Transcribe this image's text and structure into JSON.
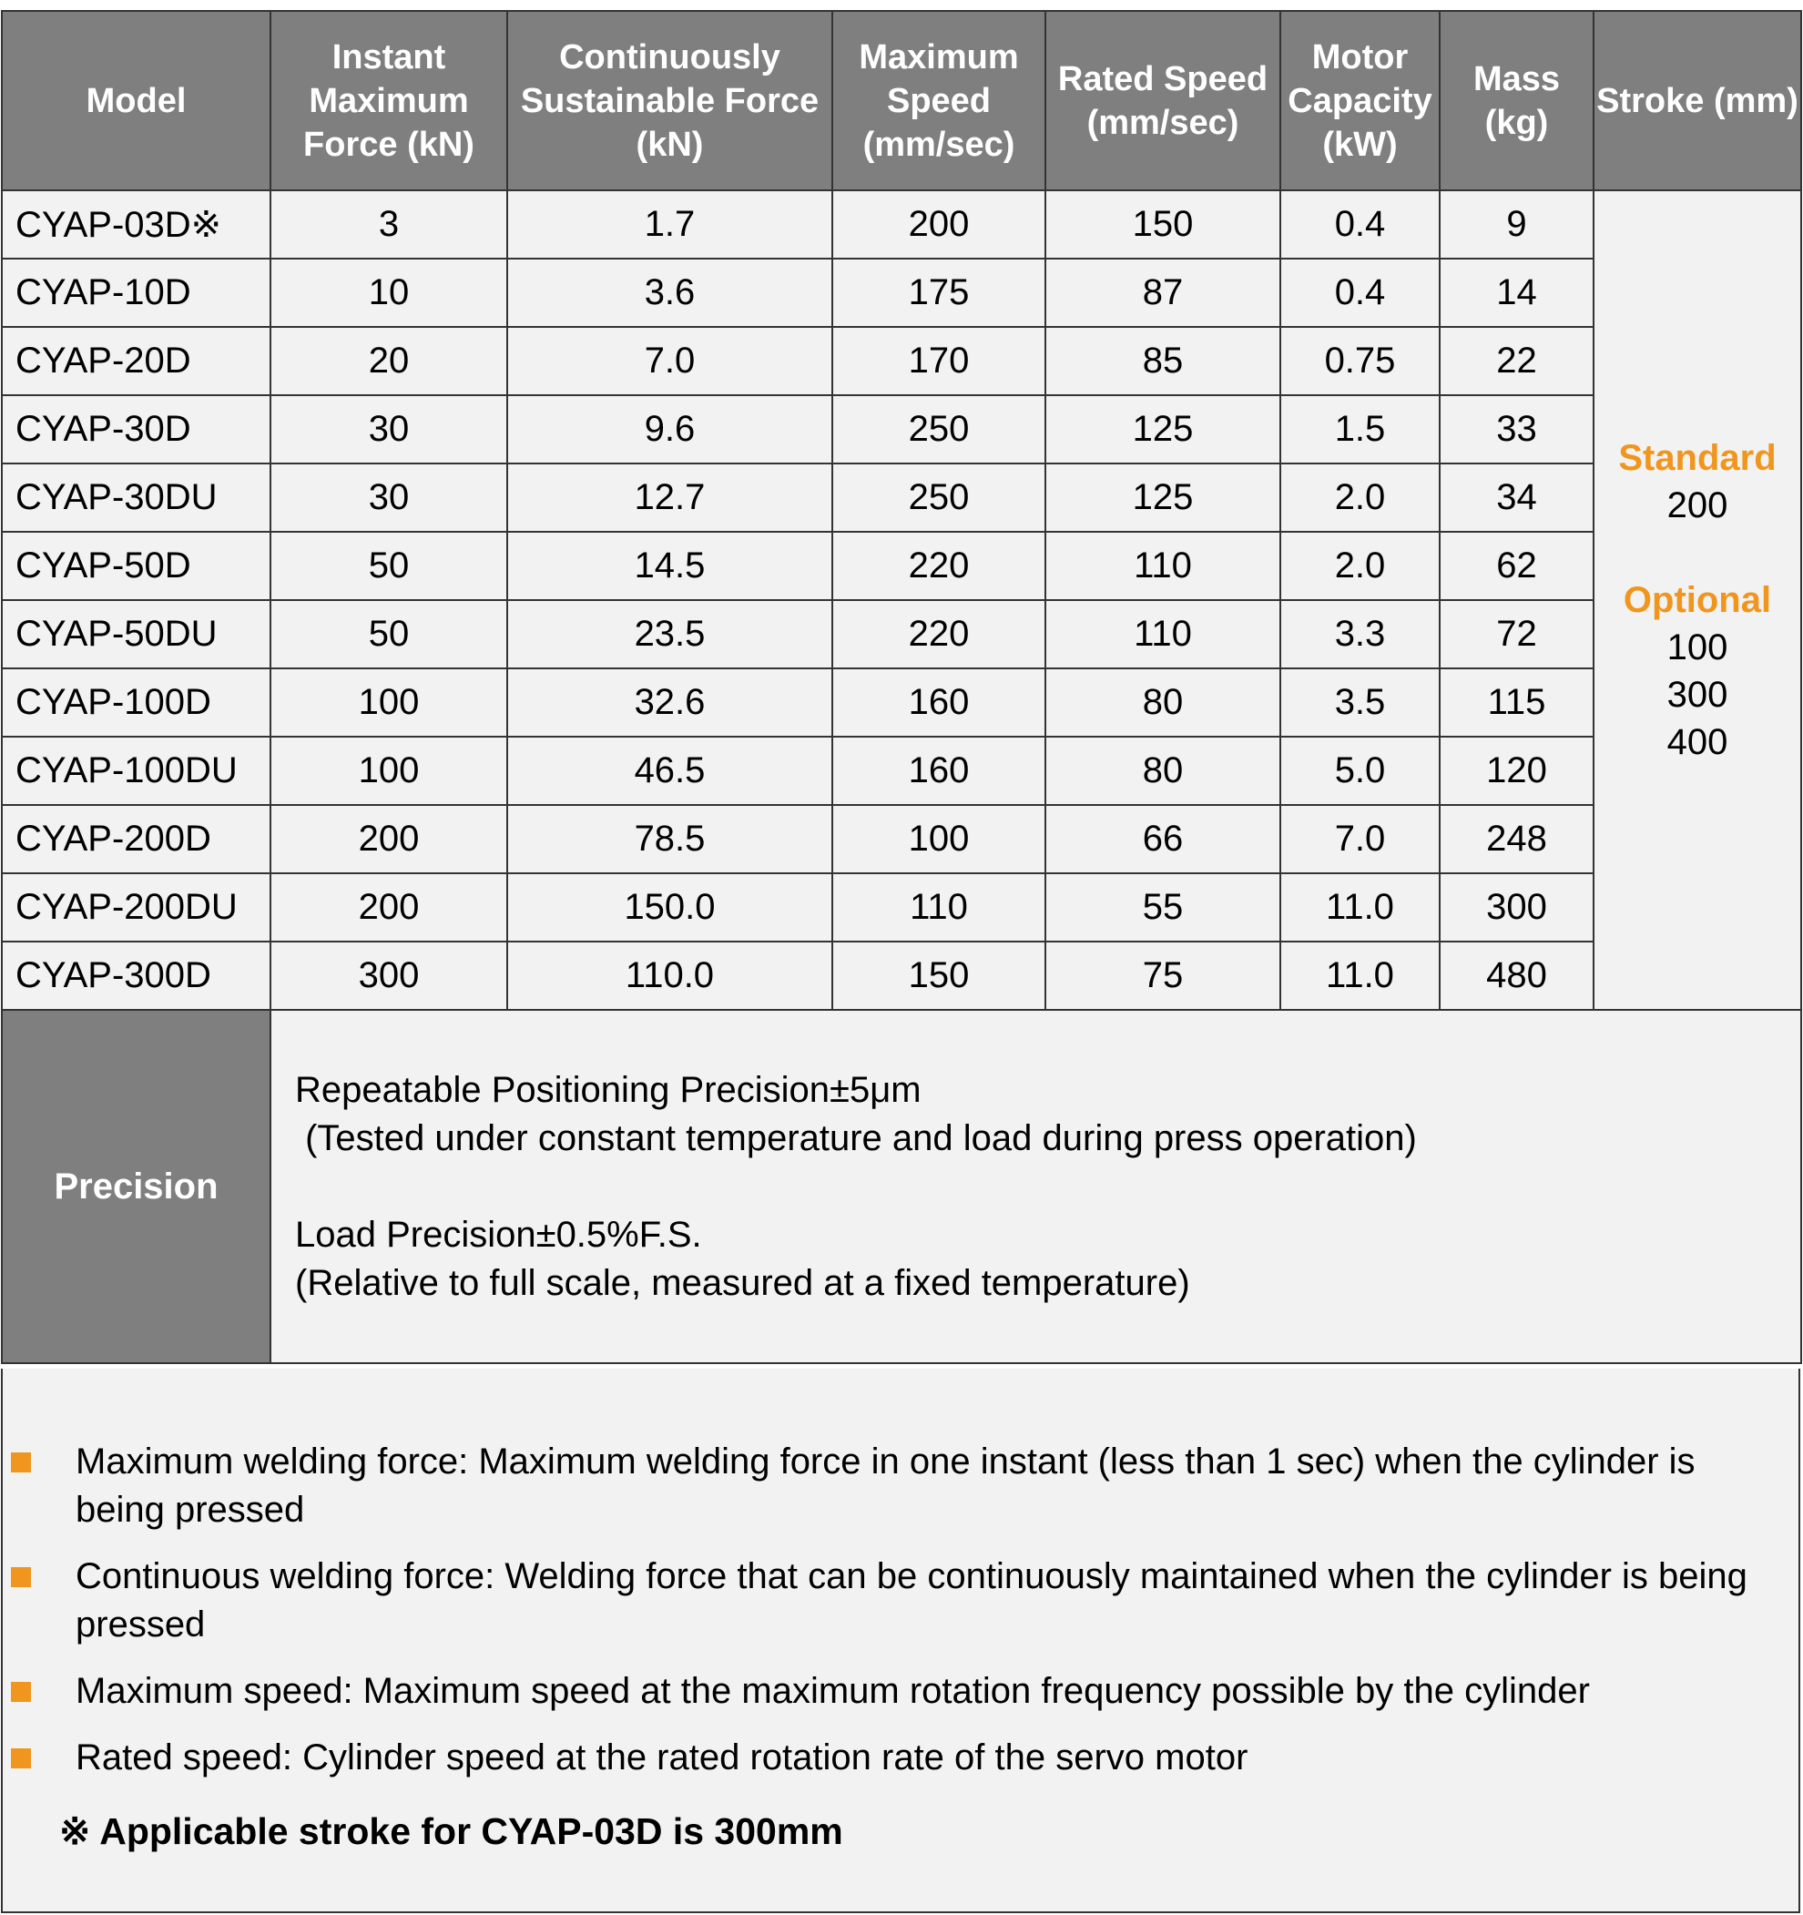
{
  "table": {
    "headers": [
      "Model",
      "Instant Maximum Force (kN)",
      "Continuously Sustainable Force (kN)",
      "Maximum Speed (mm/sec)",
      "Rated Speed (mm/sec)",
      "Motor Capacity (kW)",
      "Mass (kg)",
      "Stroke (mm)"
    ],
    "rows": [
      [
        "CYAP-03D※",
        "3",
        "1.7",
        "200",
        "150",
        "0.4",
        "9"
      ],
      [
        "CYAP-10D",
        "10",
        "3.6",
        "175",
        "87",
        "0.4",
        "14"
      ],
      [
        "CYAP-20D",
        "20",
        "7.0",
        "170",
        "85",
        "0.75",
        "22"
      ],
      [
        "CYAP-30D",
        "30",
        "9.6",
        "250",
        "125",
        "1.5",
        "33"
      ],
      [
        "CYAP-30DU",
        "30",
        "12.7",
        "250",
        "125",
        "2.0",
        "34"
      ],
      [
        "CYAP-50D",
        "50",
        "14.5",
        "220",
        "110",
        "2.0",
        "62"
      ],
      [
        "CYAP-50DU",
        "50",
        "23.5",
        "220",
        "110",
        "3.3",
        "72"
      ],
      [
        "CYAP-100D",
        "100",
        "32.6",
        "160",
        "80",
        "3.5",
        "115"
      ],
      [
        "CYAP-100DU",
        "100",
        "46.5",
        "160",
        "80",
        "5.0",
        "120"
      ],
      [
        "CYAP-200D",
        "200",
        "78.5",
        "100",
        "66",
        "7.0",
        "248"
      ],
      [
        "CYAP-200DU",
        "200",
        "150.0",
        "110",
        "55",
        "11.0",
        "300"
      ],
      [
        "CYAP-300D",
        "300",
        "110.0",
        "150",
        "75",
        "11.0",
        "480"
      ]
    ],
    "stroke": {
      "standard_label": "Standard",
      "standard_value": "200",
      "optional_label": "Optional",
      "optional_values": [
        "100",
        "300",
        "400"
      ]
    }
  },
  "precision": {
    "label": "Precision",
    "lines": [
      "Repeatable Positioning Precision±5μm",
      " (Tested under constant temperature and load during press operation)",
      "Load Precision±0.5%F.S.",
      "(Relative to full scale, measured at a fixed temperature)"
    ]
  },
  "notes": [
    "Maximum welding force: Maximum welding force in one instant (less than 1 sec) when the cylinder is being pressed",
    "Continuous welding force: Welding force that can be continuously maintained when the cylinder is being pressed",
    "Maximum speed: Maximum speed at the maximum rotation frequency possible by the cylinder",
    "Rated speed: Cylinder speed at the rated rotation rate of the servo motor"
  ],
  "footnote": "※ Applicable stroke for CYAP-03D is 300mm",
  "colors": {
    "header_bg": "#7f7f7f",
    "cell_bg": "#f2f2f2",
    "accent": "#f0961e",
    "border": "#333333"
  }
}
